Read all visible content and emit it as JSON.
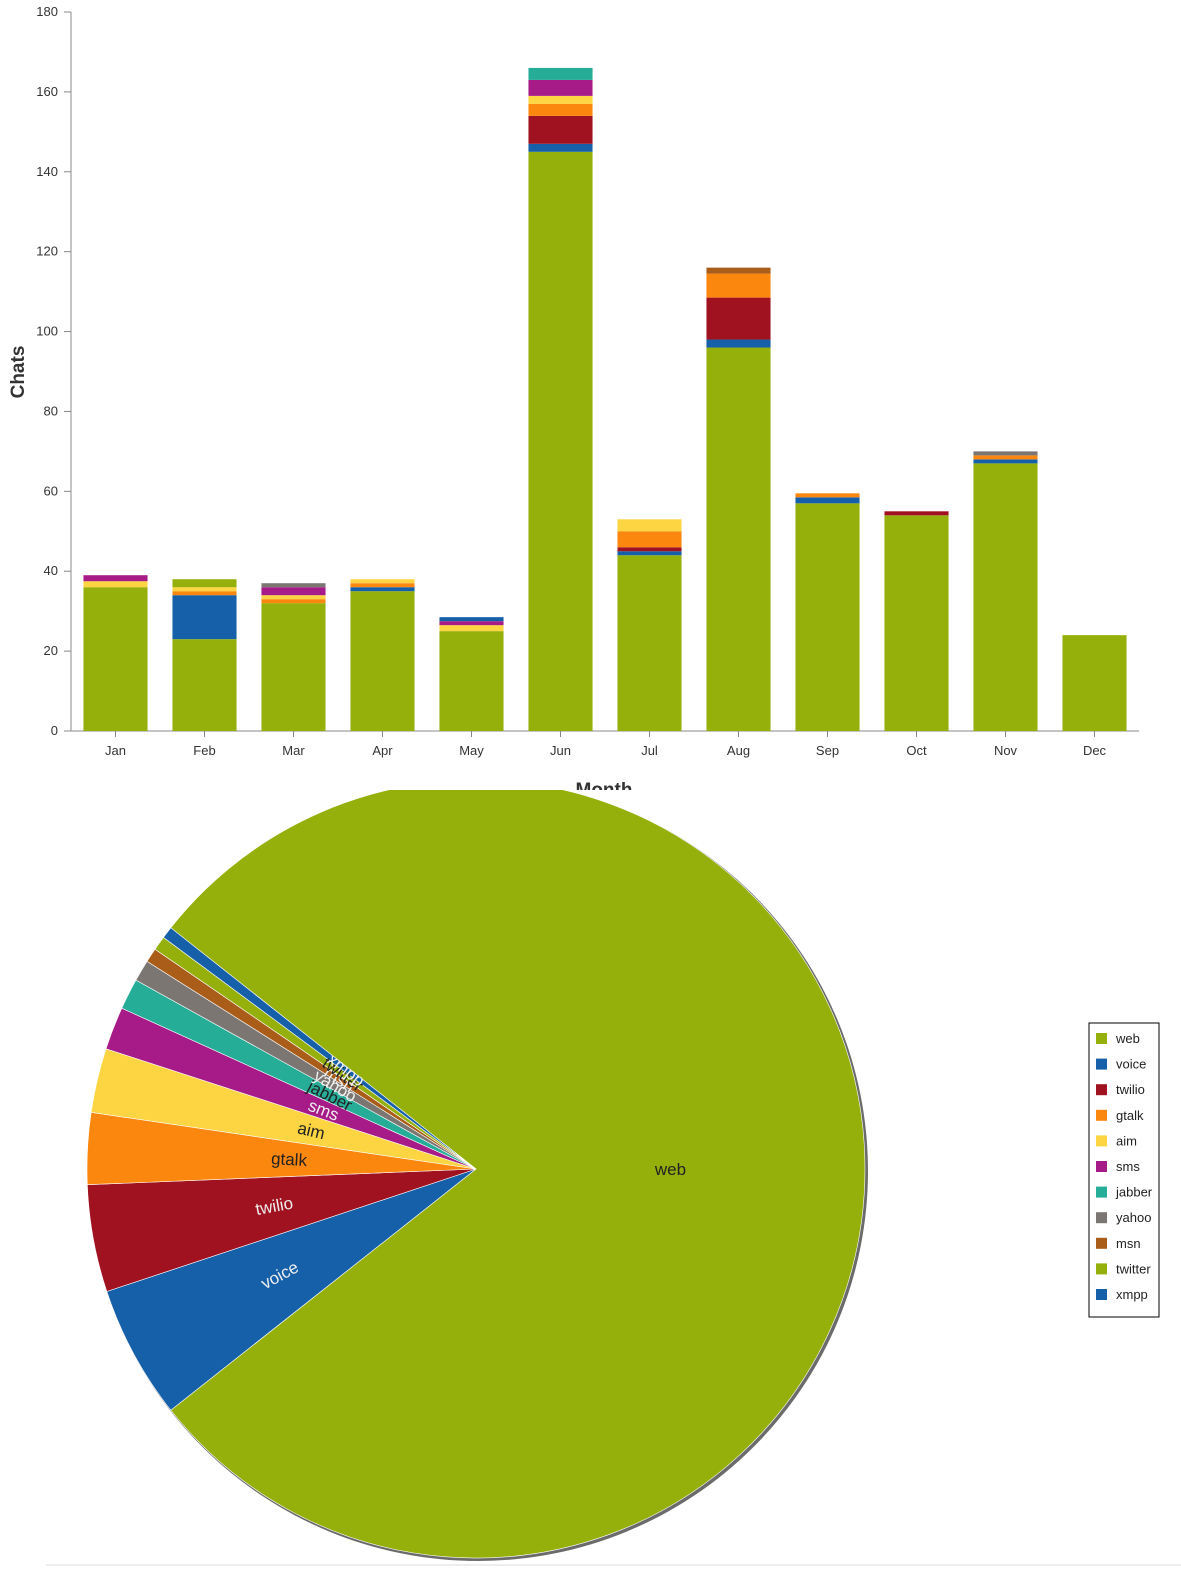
{
  "colors": {
    "web": "#95b00b",
    "voice": "#1560a8",
    "twilio": "#a11221",
    "gtalk": "#fb870f",
    "aim": "#fdd441",
    "sms": "#a61b88",
    "jabber": "#26ad98",
    "yahoo": "#7c7673",
    "msn": "#a95d18",
    "twitter": "#95b00b",
    "xmpp": "#1560a8"
  },
  "chart_data": [
    {
      "type": "bar",
      "stacked": true,
      "ylabel": "Chats",
      "xlabel": "Month",
      "ylim": [
        0,
        180
      ],
      "yticks": [
        0,
        20,
        40,
        60,
        80,
        100,
        120,
        140,
        160,
        180
      ],
      "categories": [
        "Jan",
        "Feb",
        "Mar",
        "Apr",
        "May",
        "Jun",
        "Jul",
        "Aug",
        "Sep",
        "Oct",
        "Nov",
        "Dec"
      ],
      "series": [
        {
          "name": "web",
          "values": [
            36,
            23,
            32,
            35,
            25,
            145,
            44,
            96,
            57,
            54,
            67,
            24
          ]
        },
        {
          "name": "voice",
          "values": [
            0,
            11,
            0,
            1,
            0,
            2,
            1,
            2,
            1.5,
            0,
            1,
            0
          ]
        },
        {
          "name": "twilio",
          "values": [
            0,
            0,
            0,
            0,
            0,
            7,
            1,
            10.5,
            0,
            1,
            0,
            0
          ]
        },
        {
          "name": "gtalk",
          "values": [
            0,
            1,
            1,
            1,
            0,
            3,
            4,
            6,
            1,
            0,
            1,
            0
          ]
        },
        {
          "name": "aim",
          "values": [
            1.5,
            1,
            1,
            1,
            1.5,
            2,
            3,
            0,
            0,
            0,
            0,
            0
          ]
        },
        {
          "name": "sms",
          "values": [
            1.5,
            0,
            2,
            0,
            1,
            4,
            0,
            0,
            0,
            0,
            0,
            0
          ]
        },
        {
          "name": "jabber",
          "values": [
            0,
            0,
            0,
            0,
            0,
            3,
            0,
            0,
            0,
            0,
            0,
            0
          ]
        },
        {
          "name": "yahoo",
          "values": [
            0,
            0,
            1,
            0,
            0,
            0,
            0,
            0,
            0,
            0,
            1,
            0
          ]
        },
        {
          "name": "msn",
          "values": [
            0,
            0,
            0,
            0,
            0,
            0,
            0,
            1.5,
            0,
            0,
            0,
            0
          ]
        },
        {
          "name": "twitter",
          "values": [
            0,
            2,
            0,
            0,
            0,
            0,
            0,
            0,
            0,
            0,
            0,
            0
          ]
        },
        {
          "name": "xmpp",
          "values": [
            0,
            0,
            0,
            0,
            1,
            0,
            0,
            0,
            0,
            0,
            0,
            0
          ]
        }
      ]
    },
    {
      "type": "pie",
      "slices": [
        {
          "label": "web",
          "value": 79.5
        },
        {
          "label": "voice",
          "value": 5.6
        },
        {
          "label": "twilio",
          "value": 4.5
        },
        {
          "label": "gtalk",
          "value": 3.0
        },
        {
          "label": "aim",
          "value": 2.7
        },
        {
          "label": "sms",
          "value": 1.8
        },
        {
          "label": "jabber",
          "value": 1.3
        },
        {
          "label": "yahoo",
          "value": 0.9
        },
        {
          "label": "msn",
          "value": 0.6
        },
        {
          "label": "twitter",
          "value": 0.6
        },
        {
          "label": "xmpp",
          "value": 0.5
        }
      ],
      "legend": [
        "web",
        "voice",
        "twilio",
        "gtalk",
        "aim",
        "sms",
        "jabber",
        "yahoo",
        "msn",
        "twitter",
        "xmpp"
      ],
      "legend_position": "right"
    }
  ]
}
